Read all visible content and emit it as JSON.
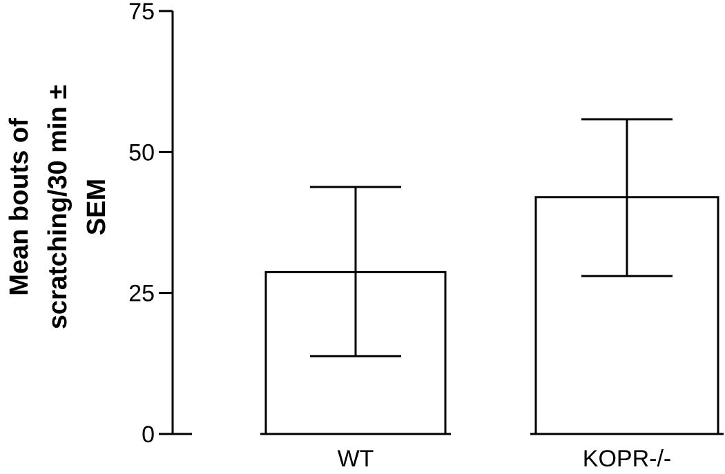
{
  "chart_data": {
    "type": "bar",
    "title": "",
    "xlabel": "",
    "ylabel": "Mean bouts of scratching/30 min ± SEM",
    "ylabel_lines": [
      "Mean bouts of",
      "scratching/30 min ±",
      "SEM"
    ],
    "categories": [
      "WT",
      "KOPR-/-"
    ],
    "values": [
      28.7,
      42.0
    ],
    "error": [
      [
        13.8,
        43.8
      ],
      [
        28.0,
        55.8
      ]
    ],
    "sem": [
      15.0,
      13.9
    ],
    "ylim": [
      0,
      75
    ],
    "yticks": [
      0,
      25,
      50,
      75
    ],
    "ytick_labels": [
      "0",
      "25",
      "50",
      "75"
    ],
    "grid": false,
    "legend": null
  }
}
